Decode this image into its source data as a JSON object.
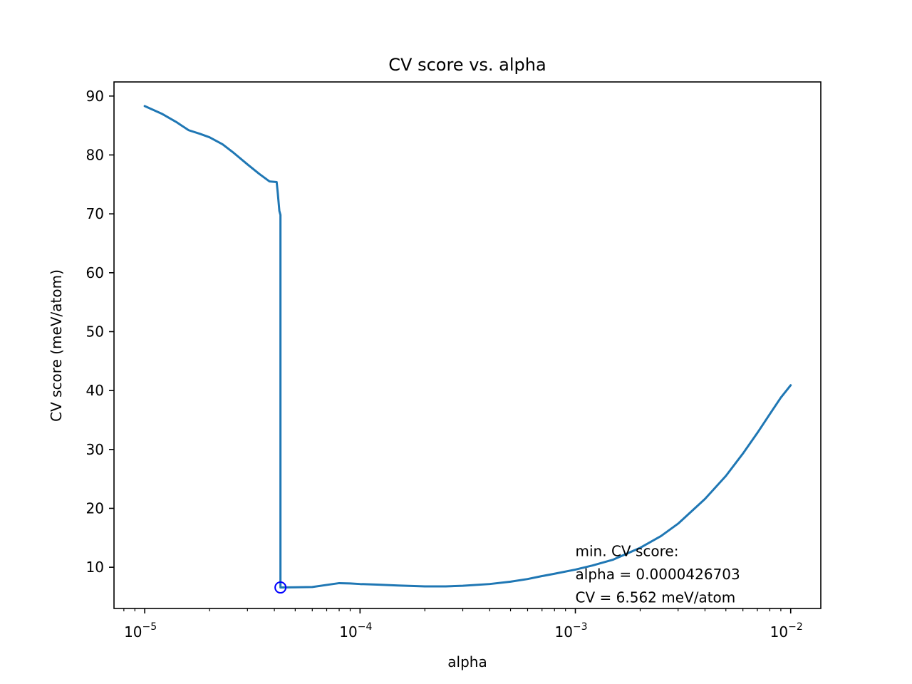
{
  "chart_data": {
    "type": "line",
    "title": "CV score vs. alpha",
    "xlabel": "alpha",
    "ylabel": "CV score (meV/atom)",
    "xscale": "log",
    "xlim": [
      7.2e-06,
      0.0138
    ],
    "ylim": [
      3.0,
      90.0
    ],
    "grid": false,
    "x_ticks": [
      {
        "value": 1e-05,
        "base": "10",
        "exponent": "−5"
      },
      {
        "value": 0.0001,
        "base": "10",
        "exponent": "−4"
      },
      {
        "value": 0.001,
        "base": "10",
        "exponent": "−3"
      },
      {
        "value": 0.01,
        "base": "10",
        "exponent": "−2"
      }
    ],
    "y_ticks": [
      {
        "value": 10,
        "label": "10"
      },
      {
        "value": 20,
        "label": "20"
      },
      {
        "value": 30,
        "label": "30"
      },
      {
        "value": 40,
        "label": "40"
      },
      {
        "value": 50,
        "label": "50"
      },
      {
        "value": 60,
        "label": "60"
      },
      {
        "value": 70,
        "label": "70"
      },
      {
        "value": 80,
        "label": "80"
      },
      {
        "value": 90,
        "label": "90"
      }
    ],
    "series": [
      {
        "name": "CV score",
        "color": "#1f77b4",
        "x": [
          1e-05,
          1.2e-05,
          1.4e-05,
          1.6e-05,
          1.8e-05,
          2e-05,
          2.3e-05,
          2.6e-05,
          3e-05,
          3.4e-05,
          3.8e-05,
          4.1e-05,
          4.15e-05,
          4.22e-05,
          4.27e-05,
          4.27e-05,
          4.27e-05,
          5e-05,
          6e-05,
          7e-05,
          8e-05,
          9e-05,
          0.0001,
          0.00012,
          0.00015,
          0.0002,
          0.00025,
          0.0003,
          0.0004,
          0.0005,
          0.0006,
          0.0007,
          0.0008,
          0.001,
          0.0012,
          0.0015,
          0.002,
          0.0025,
          0.003,
          0.004,
          0.005,
          0.006,
          0.007,
          0.008,
          0.009,
          0.01
        ],
        "y": [
          88.3,
          87.0,
          85.6,
          84.2,
          83.6,
          83.0,
          81.8,
          80.3,
          78.4,
          76.8,
          75.5,
          75.4,
          73.5,
          70.5,
          69.8,
          40.0,
          6.562,
          6.6,
          6.65,
          7.0,
          7.3,
          7.25,
          7.15,
          7.05,
          6.9,
          6.75,
          6.75,
          6.85,
          7.15,
          7.55,
          8.0,
          8.5,
          8.9,
          9.6,
          10.3,
          11.3,
          13.3,
          15.3,
          17.4,
          21.6,
          25.5,
          29.3,
          32.8,
          36.0,
          38.8,
          40.9
        ]
      }
    ],
    "marker": {
      "x": 4.27e-05,
      "y": 6.562,
      "shape": "open-circle",
      "color": "#0000ff"
    },
    "annotation": {
      "x": 0.001,
      "y": 11.9,
      "lines": [
        "min. CV score:",
        "alpha = 0.0000426703",
        "CV = 6.562 meV/atom"
      ]
    }
  }
}
